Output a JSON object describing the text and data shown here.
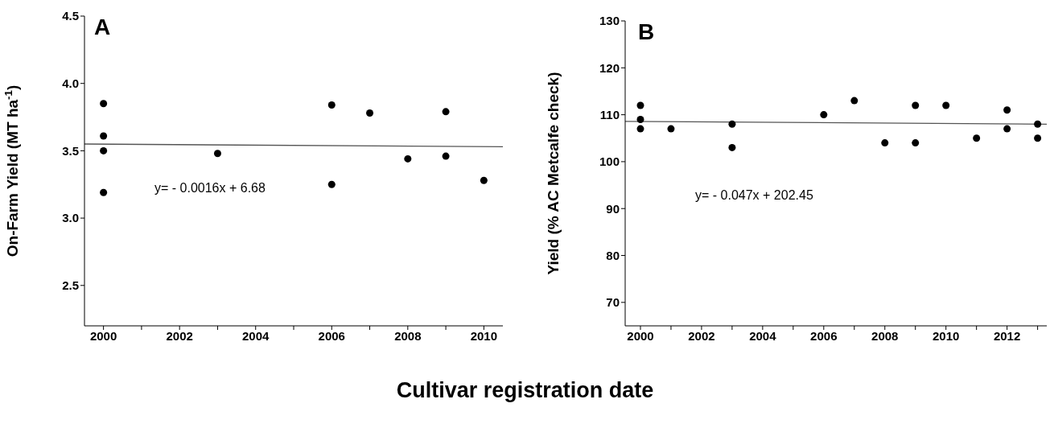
{
  "chart_data": [
    {
      "type": "scatter",
      "ylabel": "On-Farm Yield (MT ha$^{-1}$)",
      "xlabel": "Cultivar registration date",
      "annotations": [
        "A",
        "y= - 0.0016x + 6.68"
      ],
      "xlim": [
        1999.5,
        2010.5
      ],
      "ylim": [
        2.2,
        4.5
      ],
      "xticks": [
        2000,
        {
          "value": 2001,
          "label": null
        },
        2002,
        {
          "value": 2003,
          "label": null
        },
        2004,
        {
          "value": 2005,
          "label": null
        },
        2006,
        {
          "value": 2007,
          "label": null
        },
        2008,
        {
          "value": 2009,
          "label": null
        },
        2010
      ],
      "yticks": [
        2.5,
        {
          "value": 3,
          "label": "3.0"
        },
        3.5,
        {
          "value": 4,
          "label": "4.0"
        },
        4.5
      ],
      "series": [
        {
          "type": "scatter",
          "marker": "circle",
          "color": "#000000",
          "x": [
            2000,
            2000,
            2000,
            2000,
            2003,
            2006,
            2006,
            2007,
            2008,
            2009,
            2009,
            2010
          ],
          "values": [
            3.85,
            3.61,
            3.5,
            3.19,
            3.48,
            3.84,
            3.25,
            3.78,
            3.44,
            3.79,
            3.46,
            3.28
          ]
        },
        {
          "type": "line",
          "marker": "none",
          "color": "#555555",
          "x": [
            1999.5,
            2010.5
          ],
          "values": [
            3.55,
            3.53
          ]
        }
      ]
    },
    {
      "type": "scatter",
      "ylabel": "Yield (% AC Metcalfe check)",
      "annotations": [
        "B",
        "y= - 0.047x + 202.45"
      ],
      "xlim": [
        1999.5,
        2013.3
      ],
      "ylim": [
        65,
        130
      ],
      "xticks": [
        2000,
        {
          "value": 2001,
          "label": null
        },
        2002,
        {
          "value": 2003,
          "label": null
        },
        2004,
        {
          "value": 2005,
          "label": null
        },
        2006,
        {
          "value": 2007,
          "label": null
        },
        2008,
        {
          "value": 2009,
          "label": null
        },
        2010,
        {
          "value": 2011,
          "label": null
        },
        2012,
        {
          "value": 2013,
          "label": null
        }
      ],
      "yticks": [
        70,
        80,
        90,
        100,
        110,
        120,
        130
      ],
      "series": [
        {
          "type": "scatter",
          "marker": "circle",
          "color": "#000000",
          "x": [
            2000,
            2000,
            2000,
            2001,
            2003,
            2003,
            2006,
            2007,
            2008,
            2009,
            2009,
            2010,
            2011,
            2012,
            2012,
            2013,
            2013
          ],
          "values": [
            112,
            109,
            107,
            107,
            108,
            103,
            110,
            113,
            104,
            112,
            104,
            112,
            105,
            111,
            107,
            108,
            105
          ]
        },
        {
          "type": "line",
          "marker": "none",
          "color": "#555555",
          "x": [
            1999.5,
            2013.3
          ],
          "values": [
            108.6,
            108
          ]
        }
      ]
    }
  ]
}
